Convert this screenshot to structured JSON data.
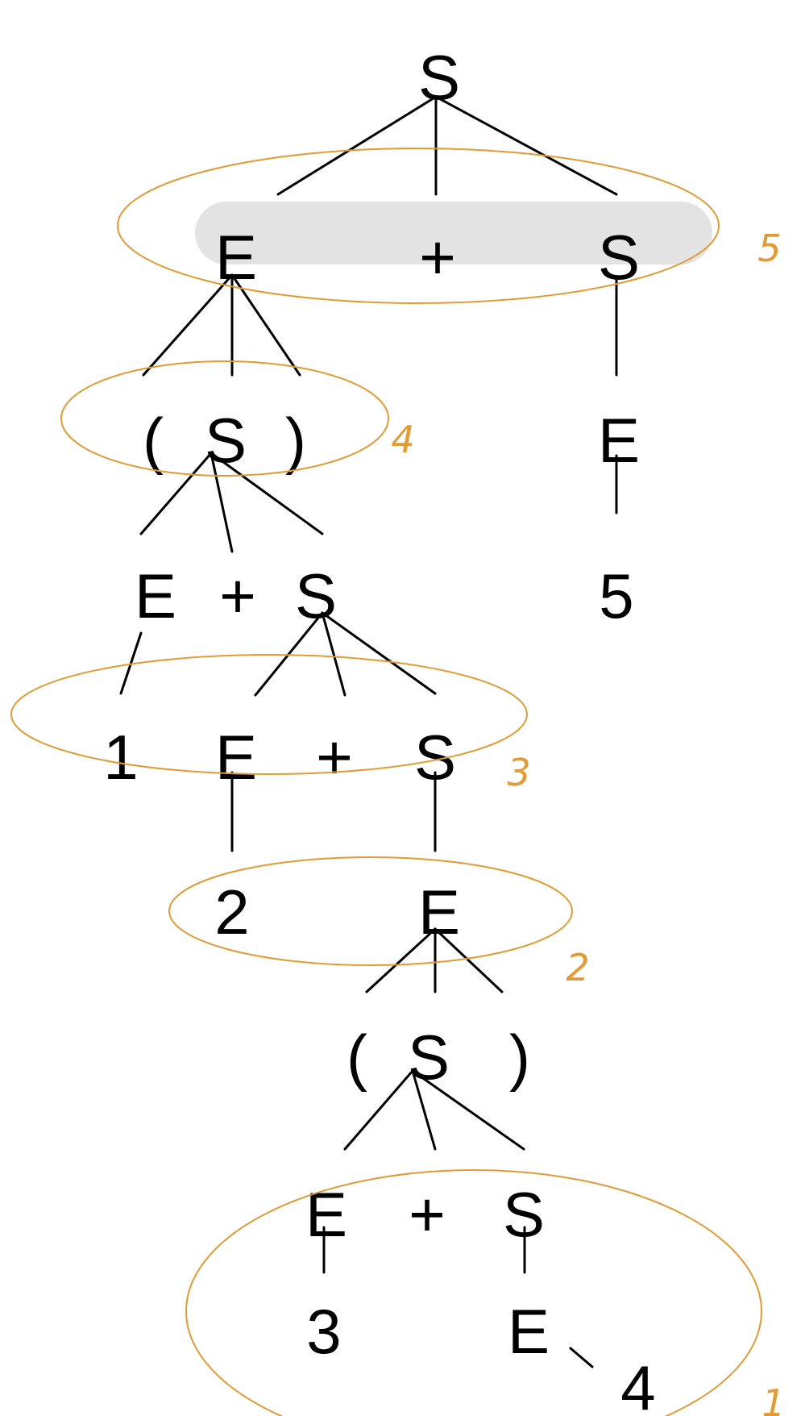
{
  "nodes": [
    {
      "label": "S"
    },
    {
      "label": "E"
    },
    {
      "label": "+"
    },
    {
      "label": "S"
    },
    {
      "label": "("
    },
    {
      "label": "S"
    },
    {
      "label": ")"
    },
    {
      "label": "E"
    },
    {
      "label": "5"
    },
    {
      "label": "E"
    },
    {
      "label": "+"
    },
    {
      "label": "S"
    },
    {
      "label": "1"
    },
    {
      "label": "E"
    },
    {
      "label": "+"
    },
    {
      "label": "S"
    },
    {
      "label": "2"
    },
    {
      "label": "E"
    },
    {
      "label": "("
    },
    {
      "label": "S"
    },
    {
      "label": ")"
    },
    {
      "label": "E"
    },
    {
      "label": "+"
    },
    {
      "label": "S"
    },
    {
      "label": "3"
    },
    {
      "label": "E"
    },
    {
      "label": "4"
    }
  ],
  "annotations": [
    {
      "label": "5"
    },
    {
      "label": "4"
    },
    {
      "label": "3"
    },
    {
      "label": "2"
    },
    {
      "label": "1"
    }
  ],
  "colors": {
    "annotation": "#e39a35",
    "highlight": "#e3e3e3"
  }
}
